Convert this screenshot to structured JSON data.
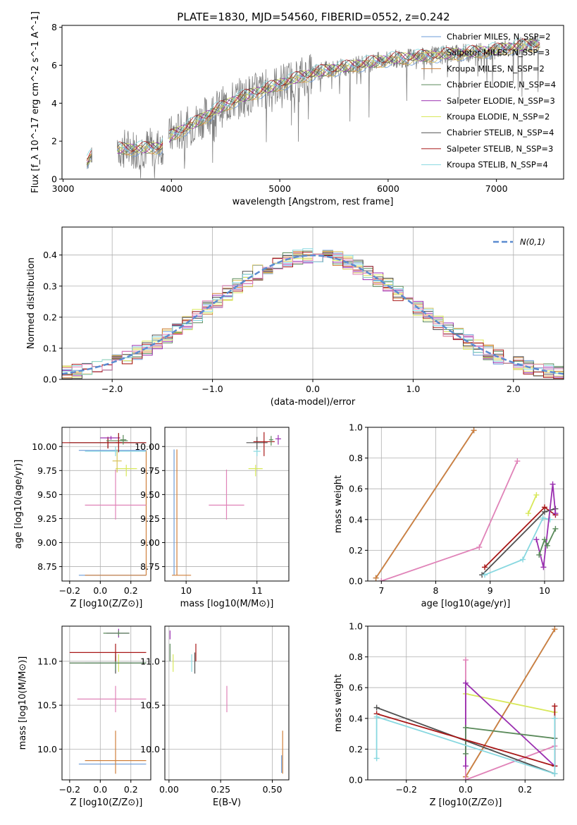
{
  "figure": {
    "title": "PLATE=1830, MJD=54560, FIBERID=0552, z=0.242"
  },
  "series_styles": [
    {
      "name": "Chabrier MILES, N_SSP=2",
      "color": "#6b9bd8"
    },
    {
      "name": "Salpeter MILES, N_SSP=3",
      "color": "#d8c35a"
    },
    {
      "name": "Kroupa MILES, N_SSP=2",
      "color": "#d0803c"
    },
    {
      "name": "Chabrier ELODIE, N_SSP=4",
      "color": "#5a8a5a"
    },
    {
      "name": "Salpeter ELODIE, N_SSP=3",
      "color": "#9a2fb0"
    },
    {
      "name": "Kroupa ELODIE, N_SSP=2",
      "color": "#d8e85a"
    },
    {
      "name": "Chabrier STELIB, N_SSP=4",
      "color": "#505050"
    },
    {
      "name": "Salpeter STELIB, N_SSP=3",
      "color": "#a81818"
    },
    {
      "name": "Kroupa STELIB, N_SSP=4",
      "color": "#88d8e0"
    }
  ],
  "chart_data": [
    {
      "id": "spectrum",
      "type": "line",
      "xlabel": "wavelength [Angstrom, rest frame]",
      "ylabel": "Flux [f_λ 10^-17 erg cm^-2 s^-1 A^-1]",
      "xlim": [
        2990,
        7620
      ],
      "ylim": [
        0,
        8.1
      ],
      "xticks": [
        3000,
        4000,
        5000,
        6000,
        7000
      ],
      "yticks": [
        0,
        2,
        4,
        6,
        8
      ],
      "grid": false,
      "legend": "right",
      "legend_entries": [
        "Chabrier MILES, N_SSP=2",
        "Salpeter MILES, N_SSP=3",
        "Kroupa MILES, N_SSP=2",
        "Chabrier ELODIE, N_SSP=4",
        "Salpeter ELODIE, N_SSP=3",
        "Kroupa ELODIE, N_SSP=2",
        "Chabrier STELIB, N_SSP=4",
        "Salpeter STELIB, N_SSP=3",
        "Kroupa STELIB, N_SSP=4"
      ],
      "data_trend": {
        "x": [
          3220,
          3300,
          3500,
          3700,
          3900,
          4000,
          4200,
          4400,
          4600,
          4800,
          5000,
          5200,
          5400,
          5600,
          5800,
          6000,
          6200,
          6400,
          6600,
          6800,
          7000,
          7200,
          7400
        ],
        "y": [
          0.9,
          1.5,
          1.6,
          1.6,
          1.7,
          2.3,
          2.9,
          3.6,
          4.2,
          4.6,
          5.0,
          5.4,
          5.7,
          5.9,
          6.1,
          6.3,
          6.4,
          6.5,
          6.6,
          6.7,
          6.8,
          7.0,
          7.1
        ]
      }
    },
    {
      "id": "residuals",
      "type": "histogram",
      "xlabel": "(data-model)/error",
      "ylabel": "Normed distribution",
      "xlim": [
        -2.5,
        2.5
      ],
      "ylim": [
        0,
        0.49
      ],
      "xticks": [
        -2,
        -1,
        0,
        1,
        2
      ],
      "yticks": [
        0.0,
        0.1,
        0.2,
        0.3,
        0.4
      ],
      "grid": true,
      "legend": "top-right",
      "legend_entries": [
        "N(0,1)"
      ],
      "reference_curve": {
        "name": "N(0,1)",
        "mean": 0,
        "sigma": 1,
        "color": "#5b8bd0"
      }
    },
    {
      "id": "age_vs_Z",
      "type": "scatter",
      "xlabel": "Z [log10(Z/Z⊙)]",
      "ylabel": "age [log10(age/yr)]",
      "xlim": [
        -0.25,
        0.33
      ],
      "ylim": [
        8.6,
        10.2
      ],
      "xticks": [
        -0.2,
        0.0,
        0.2
      ],
      "yticks": [
        8.75,
        9.0,
        9.25,
        9.5,
        9.75,
        10.0
      ],
      "grid": true,
      "points": [
        {
          "series": 0,
          "x": 0.08,
          "y": 8.66,
          "xerr": [
            0.22,
            0.22
          ],
          "yerr": [
            0,
            0
          ]
        },
        {
          "series": 0,
          "x": 0.08,
          "y": 9.96,
          "xerr": [
            0.22,
            0.22
          ],
          "yerr": [
            0,
            0
          ]
        },
        {
          "series": 2,
          "x": 0.3,
          "y": 8.66,
          "xerr": [
            0.4,
            0
          ],
          "yerr": [
            0,
            1.3
          ]
        },
        {
          "series": 6,
          "x": 0.05,
          "y": 10.04,
          "xerr": [
            0.25,
            0.25
          ],
          "yerr": [
            0.06,
            0.06
          ]
        },
        {
          "series": 7,
          "x": 0.05,
          "y": 10.04,
          "xerr": [
            0.35,
            0.25
          ],
          "yerr": [
            0.06,
            0.06
          ]
        },
        {
          "series": 4,
          "x": 0.07,
          "y": 10.09,
          "xerr": [
            0.07,
            0.06
          ],
          "yerr": [
            0.02,
            0.02
          ]
        },
        {
          "series": 3,
          "x": 0.12,
          "y": 10.06,
          "xerr": [
            0.08,
            0.06
          ],
          "yerr": [
            0.08,
            0.08
          ]
        },
        {
          "series": 5,
          "x": 0.17,
          "y": 9.77,
          "xerr": [
            0.07,
            0.07
          ],
          "yerr": [
            0.08,
            0.04
          ]
        },
        {
          "series": 1,
          "x": 0.11,
          "y": 9.85,
          "xerr": [
            0.03,
            0.03
          ],
          "yerr": [
            0.12,
            0.12
          ]
        },
        {
          "series": 8,
          "x": 0.1,
          "y": 9.95,
          "xerr": [
            0.2,
            0.2
          ],
          "yerr": [
            0.05,
            0.05
          ]
        },
        {
          "series": 7,
          "x": 0.12,
          "y": 10.04,
          "xerr": [
            0.02,
            0.02
          ],
          "yerr": [
            0.1,
            0.1
          ]
        },
        {
          "series": 3,
          "x": 0.15,
          "y": 10.07,
          "xerr": [
            0.02,
            0.02
          ],
          "yerr": [
            0.05,
            0.05
          ]
        },
        {
          "series": 9,
          "x": 0.1,
          "y": 9.39,
          "xerr": [
            0.2,
            0.2
          ],
          "yerr": [
            0.15,
            0.37
          ]
        }
      ]
    },
    {
      "id": "age_vs_mass",
      "type": "scatter",
      "xlabel": "mass [log10(M/M⊙)]",
      "ylabel": "",
      "xlim": [
        9.7,
        11.45
      ],
      "ylim": [
        8.6,
        10.2
      ],
      "xticks": [
        10,
        11
      ],
      "yticks": [
        8.75,
        9.0,
        9.25,
        9.5,
        9.75,
        10.0
      ],
      "grid": true,
      "points": [
        {
          "series": 0,
          "x": 9.83,
          "y": 8.66,
          "xerr": [
            0,
            0
          ],
          "yerr": [
            0,
            1.31
          ]
        },
        {
          "series": 2,
          "x": 9.87,
          "y": 8.66,
          "xerr": [
            0.07,
            0.2
          ],
          "yerr": [
            0,
            1.31
          ]
        },
        {
          "series": 9,
          "x": 10.57,
          "y": 9.39,
          "xerr": [
            0.25,
            0.25
          ],
          "yerr": [
            0.15,
            0.37
          ]
        },
        {
          "series": 5,
          "x": 10.98,
          "y": 9.77,
          "xerr": [
            0.1,
            0.1
          ],
          "yerr": [
            0.08,
            0.04
          ]
        },
        {
          "series": 8,
          "x": 11.0,
          "y": 9.95,
          "xerr": [
            0.05,
            0.05
          ],
          "yerr": [
            0.05,
            0.05
          ]
        },
        {
          "series": 6,
          "x": 11.0,
          "y": 10.04,
          "xerr": [
            0.15,
            0.15
          ],
          "yerr": [
            0.07,
            0.06
          ]
        },
        {
          "series": 7,
          "x": 11.1,
          "y": 10.05,
          "xerr": [
            0.15,
            0.15
          ],
          "yerr": [
            0.15,
            0.1
          ]
        },
        {
          "series": 3,
          "x": 11.2,
          "y": 10.07,
          "xerr": [
            0.03,
            0.03
          ],
          "yerr": [
            0.06,
            0.04
          ]
        },
        {
          "series": 4,
          "x": 11.3,
          "y": 10.08,
          "xerr": [
            0.04,
            0.04
          ],
          "yerr": [
            0.06,
            0.04
          ]
        }
      ]
    },
    {
      "id": "massweight_vs_age",
      "type": "line",
      "xlabel": "age [log10(age/yr)]",
      "ylabel": "mass weight",
      "xlim": [
        6.75,
        10.35
      ],
      "ylim": [
        0,
        1.0
      ],
      "xticks": [
        7,
        8,
        9,
        10
      ],
      "yticks": [
        0.0,
        0.2,
        0.4,
        0.6,
        0.8,
        1.0
      ],
      "grid": true,
      "series": [
        {
          "series_style": 0,
          "x": [
            6.9,
            8.7
          ],
          "y": [
            0.02,
            0.98
          ]
        },
        {
          "series_style": 2,
          "x": [
            6.9,
            8.7
          ],
          "y": [
            0.02,
            0.98
          ]
        },
        {
          "series_style": 9,
          "x": [
            7.0,
            8.8,
            9.5
          ],
          "y": [
            0.0,
            0.22,
            0.78
          ]
        },
        {
          "series_style": 5,
          "x": [
            9.7,
            9.85
          ],
          "y": [
            0.44,
            0.56
          ]
        },
        {
          "series_style": 7,
          "x": [
            8.9,
            10.0,
            10.2
          ],
          "y": [
            0.09,
            0.48,
            0.43
          ]
        },
        {
          "series_style": 6,
          "x": [
            8.85,
            10.0,
            10.2
          ],
          "y": [
            0.04,
            0.45,
            0.47
          ]
        },
        {
          "series_style": 8,
          "x": [
            8.9,
            9.6,
            9.97,
            10.1
          ],
          "y": [
            0.04,
            0.14,
            0.41,
            0.4
          ]
        },
        {
          "series_style": 4,
          "x": [
            9.85,
            9.98,
            10.15,
            10.2
          ],
          "y": [
            0.27,
            0.09,
            0.63,
            0.44
          ]
        },
        {
          "series_style": 3,
          "x": [
            9.9,
            10.0,
            10.05,
            10.2
          ],
          "y": [
            0.17,
            0.27,
            0.23,
            0.34
          ]
        }
      ]
    },
    {
      "id": "mass_vs_Z",
      "type": "scatter",
      "xlabel": "Z [log10(Z/Z⊙)]",
      "ylabel": "mass [log10(M/M⊙)]",
      "xlim": [
        -0.25,
        0.33
      ],
      "ylim": [
        9.65,
        11.4
      ],
      "xticks": [
        -0.2,
        0.0,
        0.2
      ],
      "yticks": [
        10.0,
        10.5,
        11.0
      ],
      "grid": true,
      "points": [
        {
          "series": 0,
          "x": 0.08,
          "y": 9.83,
          "xerr": [
            0.22,
            0.22
          ],
          "yerr": [
            0,
            0
          ]
        },
        {
          "series": 2,
          "x": 0.1,
          "y": 9.87,
          "xerr": [
            0.2,
            0.2
          ],
          "yerr": [
            0.15,
            0.34
          ]
        },
        {
          "series": 9,
          "x": 0.1,
          "y": 10.57,
          "xerr": [
            0.25,
            0.2
          ],
          "yerr": [
            0.15,
            0.15
          ]
        },
        {
          "series": 5,
          "x": 0.12,
          "y": 10.98,
          "xerr": [
            0.06,
            0.06
          ],
          "yerr": [
            0.1,
            0.1
          ]
        },
        {
          "series": 8,
          "x": 0.1,
          "y": 10.98,
          "xerr": [
            0.2,
            0.2
          ],
          "yerr": [
            0.1,
            0.1
          ]
        },
        {
          "series": 6,
          "x": 0.1,
          "y": 10.98,
          "xerr": [
            0.3,
            0.2
          ],
          "yerr": [
            0.12,
            0.12
          ]
        },
        {
          "series": 3,
          "x": 0.1,
          "y": 10.98,
          "xerr": [
            0.3,
            0.2
          ],
          "yerr": [
            0.08,
            0.08
          ]
        },
        {
          "series": 7,
          "x": 0.1,
          "y": 11.1,
          "xerr": [
            0.3,
            0.2
          ],
          "yerr": [
            0.1,
            0.1
          ]
        },
        {
          "series": 4,
          "x": 0.12,
          "y": 11.32,
          "xerr": [
            0.08,
            0.07
          ],
          "yerr": [
            0.05,
            0.05
          ]
        },
        {
          "series": 3,
          "x": 0.12,
          "y": 11.32,
          "xerr": [
            0.1,
            0.07
          ],
          "yerr": [
            0.03,
            0.03
          ]
        }
      ]
    },
    {
      "id": "mass_vs_EBV",
      "type": "scatter",
      "xlabel": "E(B-V)",
      "ylabel": "",
      "xlim": [
        -0.02,
        0.58
      ],
      "ylim": [
        9.65,
        11.4
      ],
      "xticks": [
        0.0,
        0.25,
        0.5
      ],
      "yticks": [
        10.0,
        10.5,
        11.0
      ],
      "grid": true,
      "points": [
        {
          "series": 3,
          "x": 0.005,
          "y": 11.1,
          "xerr": [
            0,
            0
          ],
          "yerr": [
            0.1,
            0.1
          ]
        },
        {
          "series": 4,
          "x": 0.005,
          "y": 11.3,
          "xerr": [
            0,
            0
          ],
          "yerr": [
            0.05,
            0.05
          ]
        },
        {
          "series": 5,
          "x": 0.02,
          "y": 10.98,
          "xerr": [
            0,
            0
          ],
          "yerr": [
            0.1,
            0.1
          ]
        },
        {
          "series": 8,
          "x": 0.11,
          "y": 10.98,
          "xerr": [
            0,
            0
          ],
          "yerr": [
            0.1,
            0.1
          ]
        },
        {
          "series": 6,
          "x": 0.125,
          "y": 10.98,
          "xerr": [
            0,
            0
          ],
          "yerr": [
            0.12,
            0.12
          ]
        },
        {
          "series": 7,
          "x": 0.13,
          "y": 11.1,
          "xerr": [
            0,
            0
          ],
          "yerr": [
            0.1,
            0.1
          ]
        },
        {
          "series": 9,
          "x": 0.28,
          "y": 10.57,
          "xerr": [
            0,
            0
          ],
          "yerr": [
            0.15,
            0.15
          ]
        },
        {
          "series": 0,
          "x": 0.545,
          "y": 9.83,
          "xerr": [
            0,
            0
          ],
          "yerr": [
            0.1,
            0.1
          ]
        },
        {
          "series": 2,
          "x": 0.55,
          "y": 9.87,
          "xerr": [
            0,
            0
          ],
          "yerr": [
            0.15,
            0.34
          ]
        }
      ]
    },
    {
      "id": "massweight_vs_Z",
      "type": "line",
      "xlabel": "Z [log10(Z/Z⊙)]",
      "ylabel": "mass weight",
      "xlim": [
        -0.33,
        0.33
      ],
      "ylim": [
        0,
        1.0
      ],
      "xticks": [
        -0.2,
        0.0,
        0.2
      ],
      "yticks": [
        0.0,
        0.2,
        0.4,
        0.6,
        0.8,
        1.0
      ],
      "grid": true,
      "series": [
        {
          "series_style": 0,
          "x": [
            0.0,
            0.3
          ],
          "y": [
            0.02,
            0.98
          ]
        },
        {
          "series_style": 2,
          "x": [
            0.0,
            0.3
          ],
          "y": [
            0.02,
            0.98
          ]
        },
        {
          "series_style": 9,
          "x": [
            0.0,
            0.0,
            0.3
          ],
          "y": [
            0.78,
            0.0,
            0.22
          ]
        },
        {
          "series_style": 5,
          "x": [
            0.0,
            0.3
          ],
          "y": [
            0.56,
            0.44
          ]
        },
        {
          "series_style": 4,
          "x": [
            0.0,
            0.0,
            0.3,
            0.3
          ],
          "y": [
            0.09,
            0.63,
            0.09,
            0.27
          ]
        },
        {
          "series_style": 3,
          "x": [
            0.0,
            0.0,
            0.3
          ],
          "y": [
            0.17,
            0.34,
            0.27
          ]
        },
        {
          "series_style": 6,
          "x": [
            -0.3,
            0.3
          ],
          "y": [
            0.47,
            0.04
          ]
        },
        {
          "series_style": 7,
          "x": [
            -0.3,
            0.3,
            0.3
          ],
          "y": [
            0.43,
            0.09,
            0.48
          ]
        },
        {
          "series_style": 8,
          "x": [
            -0.3,
            -0.3,
            0.3,
            0.3
          ],
          "y": [
            0.14,
            0.41,
            0.04,
            0.4
          ]
        }
      ]
    }
  ]
}
